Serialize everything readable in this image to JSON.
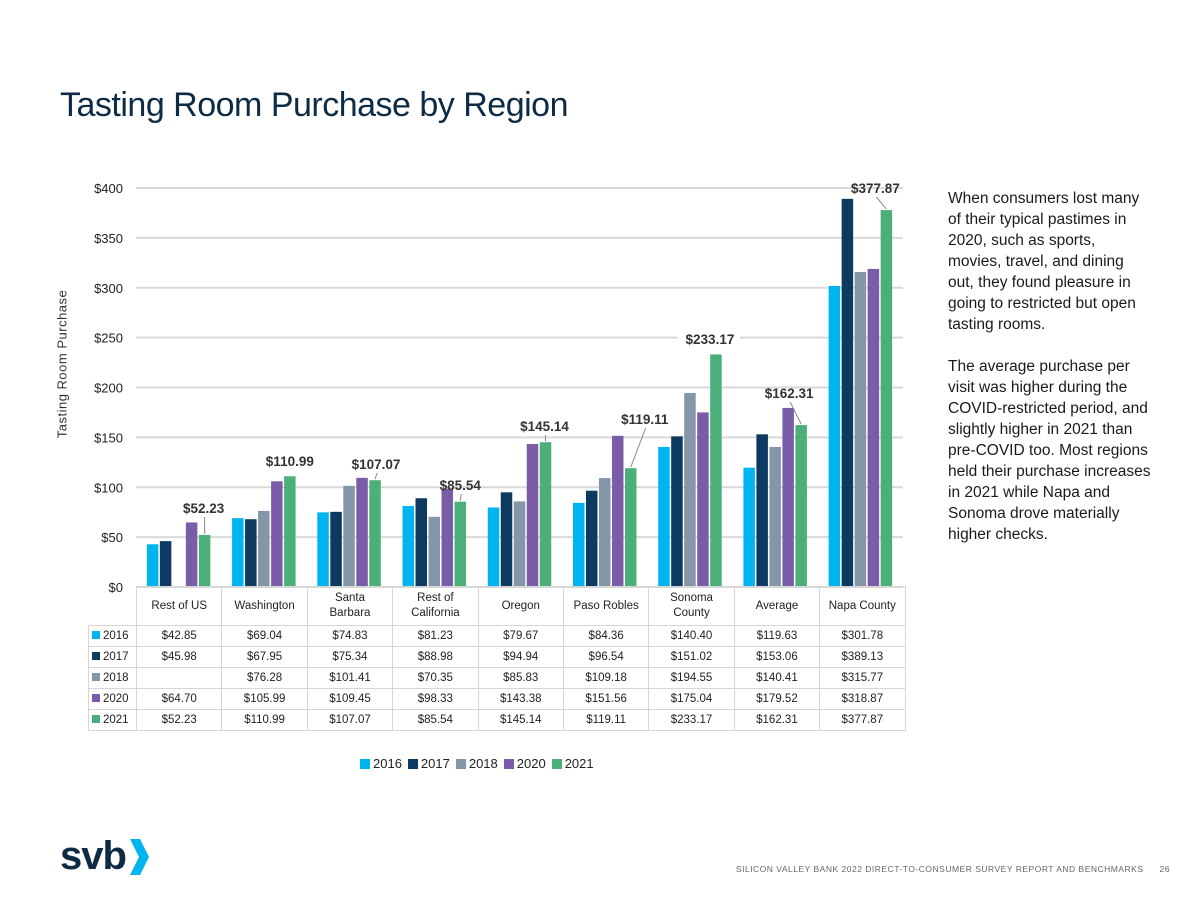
{
  "title": "Tasting Room Purchase by Region",
  "chart_data": {
    "type": "bar",
    "ylabel": "Tasting Room Purchase",
    "ylim": [
      0,
      400
    ],
    "yticks": [
      "$0",
      "$50",
      "$100",
      "$150",
      "$200",
      "$250",
      "$300",
      "$350",
      "$400"
    ],
    "ytick_values": [
      0,
      50,
      100,
      150,
      200,
      250,
      300,
      350,
      400
    ],
    "grid": true,
    "legend_position": "bottom",
    "categories": [
      [
        "Rest of US"
      ],
      [
        "Washington"
      ],
      [
        "Santa",
        "Barbara"
      ],
      [
        "Rest of",
        "California"
      ],
      [
        "Oregon"
      ],
      [
        "Paso Robles"
      ],
      [
        "Sonoma",
        "County"
      ],
      [
        "Average"
      ],
      [
        "Napa County"
      ]
    ],
    "series": [
      {
        "name": "2016",
        "color": "#00b4f0",
        "values": [
          42.85,
          69.04,
          74.83,
          81.23,
          79.67,
          84.36,
          140.4,
          119.63,
          301.78
        ],
        "labels": [
          "$42.85",
          "$69.04",
          "$74.83",
          "$81.23",
          "$79.67",
          "$84.36",
          "$140.40",
          "$119.63",
          "$301.78"
        ]
      },
      {
        "name": "2017",
        "color": "#0c3a60",
        "values": [
          45.98,
          67.95,
          75.34,
          88.98,
          94.94,
          96.54,
          151.02,
          153.06,
          389.13
        ],
        "labels": [
          "$45.98",
          "$67.95",
          "$75.34",
          "$88.98",
          "$94.94",
          "$96.54",
          "$151.02",
          "$153.06",
          "$389.13"
        ]
      },
      {
        "name": "2018",
        "color": "#8497a9",
        "values": [
          null,
          76.28,
          101.41,
          70.35,
          85.83,
          109.18,
          194.55,
          140.41,
          315.77
        ],
        "labels": [
          "",
          "$76.28",
          "$101.41",
          "$70.35",
          "$85.83",
          "$109.18",
          "$194.55",
          "$140.41",
          "$315.77"
        ]
      },
      {
        "name": "2020",
        "color": "#7b5ca8",
        "values": [
          64.7,
          105.99,
          109.45,
          98.33,
          143.38,
          151.56,
          175.04,
          179.52,
          318.87
        ],
        "labels": [
          "$64.70",
          "$105.99",
          "$109.45",
          "$98.33",
          "$143.38",
          "$151.56",
          "$175.04",
          "$179.52",
          "$318.87"
        ]
      },
      {
        "name": "2021",
        "color": "#4caf7a",
        "values": [
          52.23,
          110.99,
          107.07,
          85.54,
          145.14,
          119.11,
          233.17,
          162.31,
          377.87
        ],
        "labels": [
          "$52.23",
          "$110.99",
          "$107.07",
          "$85.54",
          "$145.14",
          "$119.11",
          "$233.17",
          "$162.31",
          "$377.87"
        ]
      }
    ],
    "annotations": [
      "$52.23",
      "$110.99",
      "$107.07",
      "$85.54",
      "$145.14",
      "$119.11",
      "$233.17",
      "$162.31",
      "$377.87"
    ]
  },
  "side_text": [
    "When consumers lost many of their typical pastimes in 2020, such as sports, movies, travel, and dining out, they found pleasure in going to restricted but open tasting rooms.",
    "The average purchase per visit was higher during the COVID-restricted period, and slightly higher in 2021 than pre-COVID too. Most regions held their purchase increases in 2021 while Napa and Sonoma drove materially higher checks."
  ],
  "logo": {
    "text": "svb",
    "accent": "#00b4f0"
  },
  "footer": {
    "text": "SILICON VALLEY BANK 2022 DIRECT-TO-CONSUMER SURVEY REPORT AND BENCHMARKS",
    "page": "26"
  }
}
